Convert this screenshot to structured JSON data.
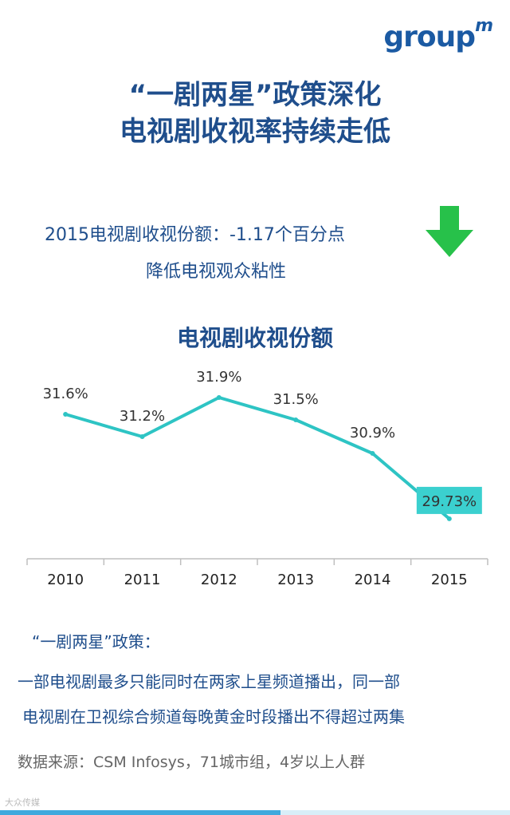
{
  "brand": {
    "logo_main": "group",
    "logo_sup": "m"
  },
  "title_line1": "“一剧两星”政策深化",
  "title_line2": "电视剧收视率持续走低",
  "stat_line1": "2015电视剧收视份额：-1.17个百分点",
  "stat_line2": "降低电视观众粘性",
  "colors": {
    "title": "#1f4e8c",
    "line": "#2ec4c4",
    "arrow": "#27c14a",
    "highlight_box": "#3bd0cf"
  },
  "chart_data": {
    "type": "line",
    "title": "电视剧收视份额",
    "categories": [
      "2010",
      "2011",
      "2012",
      "2013",
      "2014",
      "2015"
    ],
    "values": [
      31.6,
      31.2,
      31.9,
      31.5,
      30.9,
      29.73
    ],
    "data_labels": [
      "31.6%",
      "31.2%",
      "31.9%",
      "31.5%",
      "30.9%",
      "29.73%"
    ],
    "ylim": [
      29.3,
      32.3
    ],
    "grid": false,
    "highlight_last": true
  },
  "policy_head": "“一剧两星”政策：",
  "policy_line1": "一部电视剧最多只能同时在两家上星频道播出，同一部",
  "policy_line2": "电视剧在卫视综合频道每晚黄金时段播出不得超过两集",
  "source": "数据来源：CSM Infosys，71城市组，4岁以上人群",
  "watermark": "大众传媒"
}
